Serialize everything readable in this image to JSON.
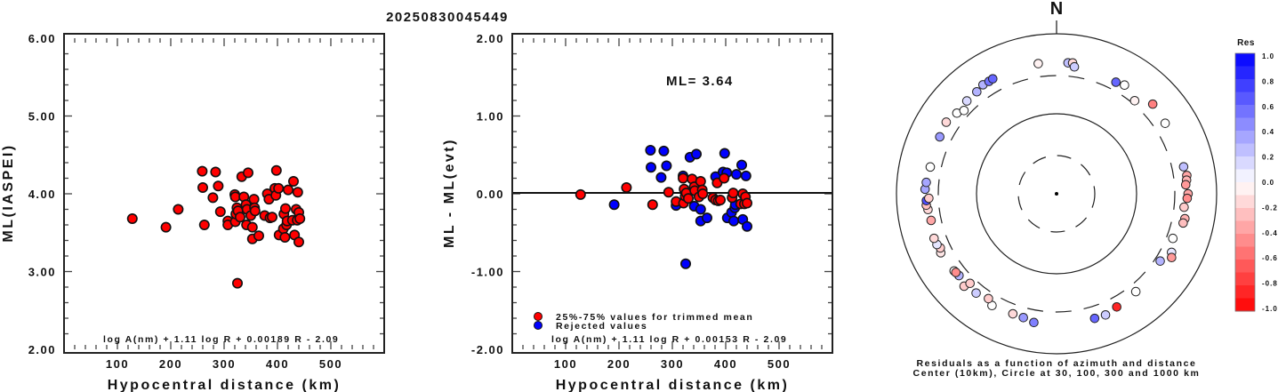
{
  "title": "20250830045449",
  "chart_data": [
    {
      "type": "scatter",
      "name": "ml-vs-distance",
      "xlabel": "Hypocentral distance (km)",
      "ylabel": "ML(IASPEI)",
      "xlim": [
        0,
        600
      ],
      "ylim": [
        2.0,
        6.0
      ],
      "xticks": [
        "100",
        "200",
        "300",
        "400",
        "500"
      ],
      "xtick_values": [
        100,
        200,
        300,
        400,
        500
      ],
      "yticks": [
        "2.00",
        "3.00",
        "4.00",
        "5.00",
        "6.00"
      ],
      "ytick_values": [
        2,
        3,
        4,
        5,
        6
      ],
      "formula": "log A(nm) + 1.11 log R + 0.00189 R - 2.09",
      "point_color": "#ff0000",
      "points": [
        [
          128,
          3.68
        ],
        [
          191,
          3.57
        ],
        [
          214,
          3.8
        ],
        [
          259,
          4.29
        ],
        [
          260,
          4.08
        ],
        [
          263,
          3.6
        ],
        [
          284,
          4.28
        ],
        [
          289,
          4.1
        ],
        [
          279,
          3.95
        ],
        [
          293,
          3.77
        ],
        [
          307,
          3.65
        ],
        [
          307,
          3.6
        ],
        [
          320,
          3.99
        ],
        [
          321,
          3.96
        ],
        [
          321,
          3.64
        ],
        [
          322,
          3.74
        ],
        [
          324,
          3.82
        ],
        [
          326,
          3.78
        ],
        [
          325,
          2.85
        ],
        [
          330,
          3.7
        ],
        [
          333,
          4.22
        ],
        [
          337,
          3.96
        ],
        [
          341,
          3.86
        ],
        [
          342,
          3.6
        ],
        [
          343,
          3.8
        ],
        [
          345,
          4.27
        ],
        [
          350,
          3.72
        ],
        [
          353,
          3.57
        ],
        [
          353,
          3.42
        ],
        [
          356,
          3.93
        ],
        [
          357,
          3.82
        ],
        [
          358,
          3.78
        ],
        [
          365,
          3.46
        ],
        [
          376,
          3.72
        ],
        [
          381,
          4.0
        ],
        [
          384,
          3.93
        ],
        [
          386,
          3.69
        ],
        [
          390,
          3.7
        ],
        [
          395,
          4.07
        ],
        [
          397,
          3.98
        ],
        [
          398,
          4.3
        ],
        [
          402,
          4.07
        ],
        [
          403,
          3.47
        ],
        [
          411,
          3.55
        ],
        [
          412,
          3.74
        ],
        [
          414,
          3.44
        ],
        [
          415,
          3.81
        ],
        [
          417,
          3.6
        ],
        [
          418,
          3.65
        ],
        [
          420,
          4.05
        ],
        [
          428,
          3.66
        ],
        [
          430,
          4.16
        ],
        [
          432,
          3.47
        ],
        [
          435,
          3.8
        ],
        [
          437,
          3.66
        ],
        [
          438,
          4.02
        ],
        [
          440,
          3.76
        ],
        [
          440,
          3.38
        ],
        [
          442,
          3.68
        ]
      ]
    },
    {
      "type": "scatter",
      "name": "residual-vs-distance",
      "xlabel": "Hypocentral distance (km)",
      "ylabel": "ML - ML(evt)",
      "xlim": [
        0,
        600
      ],
      "ylim": [
        -2.0,
        2.0
      ],
      "xticks": [
        "100",
        "200",
        "300",
        "400",
        "500"
      ],
      "xtick_values": [
        100,
        200,
        300,
        400,
        500
      ],
      "yticks": [
        "-2.00",
        "-1.00",
        "0.00",
        "1.00",
        "2.00"
      ],
      "ytick_values": [
        -2,
        -1,
        0,
        1,
        2
      ],
      "reference_line": 0.0,
      "annotation": "ML= 3.64",
      "formula": "log A(nm) + 1.11 log R + 0.00153 R - 2.09",
      "legend": [
        {
          "label": "25%-75% values for trimmed mean",
          "color": "#ff0000"
        },
        {
          "label": "Rejected values",
          "color": "#0000ff"
        }
      ],
      "legend_position": "bottom-left",
      "series": [
        {
          "name": "25%-75% values for trimmed mean",
          "color": "#ff0000",
          "points": [
            [
              128,
              -0.01
            ],
            [
              214,
              0.08
            ],
            [
              263,
              -0.14
            ],
            [
              293,
              0.02
            ],
            [
              307,
              -0.1
            ],
            [
              320,
              0.2
            ],
            [
              321,
              -0.12
            ],
            [
              322,
              0.06
            ],
            [
              324,
              -0.03
            ],
            [
              326,
              0.01
            ],
            [
              330,
              -0.06
            ],
            [
              337,
              0.19
            ],
            [
              341,
              0.09
            ],
            [
              342,
              0.04
            ],
            [
              350,
              -0.04
            ],
            [
              353,
              0.16
            ],
            [
              356,
              0.05
            ],
            [
              357,
              0.0
            ],
            [
              376,
              -0.05
            ],
            [
              381,
              -0.08
            ],
            [
              384,
              0.14
            ],
            [
              386,
              -0.09
            ],
            [
              390,
              -0.08
            ],
            [
              397,
              0.2
            ],
            [
              412,
              -0.05
            ],
            [
              414,
              0.01
            ],
            [
              428,
              -0.13
            ],
            [
              432,
              0.0
            ],
            [
              435,
              -0.13
            ],
            [
              437,
              -0.04
            ],
            [
              440,
              -0.12
            ]
          ]
        },
        {
          "name": "Rejected values",
          "color": "#0000ff",
          "points": [
            [
              191,
              -0.14
            ],
            [
              259,
              0.56
            ],
            [
              260,
              0.34
            ],
            [
              279,
              0.21
            ],
            [
              284,
              0.55
            ],
            [
              289,
              0.36
            ],
            [
              307,
              -0.15
            ],
            [
              320,
              0.23
            ],
            [
              325,
              -0.9
            ],
            [
              333,
              0.47
            ],
            [
              341,
              -0.16
            ],
            [
              345,
              0.51
            ],
            [
              353,
              -0.2
            ],
            [
              353,
              -0.35
            ],
            [
              365,
              -0.31
            ],
            [
              381,
              0.22
            ],
            [
              395,
              0.28
            ],
            [
              398,
              0.52
            ],
            [
              402,
              0.27
            ],
            [
              403,
              -0.31
            ],
            [
              411,
              -0.24
            ],
            [
              415,
              -0.35
            ],
            [
              417,
              -0.18
            ],
            [
              418,
              -0.14
            ],
            [
              420,
              0.25
            ],
            [
              430,
              0.37
            ],
            [
              432,
              -0.33
            ],
            [
              438,
              0.23
            ],
            [
              440,
              -0.42
            ]
          ]
        }
      ]
    },
    {
      "type": "scatter",
      "name": "residual-azimuth-polar",
      "north_label": "N",
      "caption_line1": "Residuals as a function of azimuth and distance",
      "caption_line2": "Center (10km), Circle at 30, 100, 300 and 1000 km",
      "rings_km": [
        30,
        100,
        300,
        1000
      ],
      "center_km": 10,
      "colorbar": {
        "title": "Res",
        "range": [
          -1.0,
          1.0
        ],
        "labels": [
          "1.0",
          "0.8",
          "0.6",
          "0.4",
          "0.2",
          "0.0",
          "-0.2",
          "-0.4",
          "-0.6",
          "-0.8",
          "-1.0"
        ],
        "max_color": "#0000ff",
        "zero_color": "#ffffff",
        "min_color": "#ff0000"
      },
      "points_az_dist_res": [
        [
          352,
          440,
          -0.05
        ],
        [
          5,
          440,
          0.25
        ],
        [
          7,
          445,
          -0.15
        ],
        [
          8,
          400,
          0.2
        ],
        [
          28,
          380,
          0.6
        ],
        [
          32,
          400,
          0.0
        ],
        [
          40,
          330,
          -0.05
        ],
        [
          47,
          440,
          -0.5
        ],
        [
          57,
          415,
          0.0
        ],
        [
          78,
          420,
          0.25
        ],
        [
          82,
          440,
          -0.35
        ],
        [
          84,
          430,
          -0.3
        ],
        [
          86,
          415,
          -0.4
        ],
        [
          90,
          440,
          -0.35
        ],
        [
          92,
          430,
          -0.45
        ],
        [
          96,
          400,
          -0.2
        ],
        [
          101,
          430,
          -0.3
        ],
        [
          103,
          420,
          -0.25
        ],
        [
          111,
          360,
          0.0
        ],
        [
          117,
          410,
          0.1
        ],
        [
          119,
          440,
          -0.4
        ],
        [
          123,
          350,
          0.3
        ],
        [
          141,
          375,
          0.0
        ],
        [
          152,
          400,
          -0.85
        ],
        [
          158,
          430,
          0.2
        ],
        [
          163,
          425,
          0.6
        ],
        [
          190,
          430,
          0.5
        ],
        [
          195,
          400,
          0.4
        ],
        [
          200,
          395,
          -0.15
        ],
        [
          210,
          410,
          0.0
        ],
        [
          213,
          365,
          -0.2
        ],
        [
          219,
          395,
          0.2
        ],
        [
          225,
          430,
          -0.2
        ],
        [
          224,
          360,
          -0.2
        ],
        [
          230,
          390,
          0.3
        ],
        [
          233,
          400,
          0.0
        ],
        [
          232,
          395,
          -0.45
        ],
        [
          243,
          420,
          -0.1
        ],
        [
          245,
          400,
          -0.2
        ],
        [
          247,
          420,
          0.1
        ],
        [
          250,
          425,
          -0.15
        ],
        [
          258,
          400,
          -0.35
        ],
        [
          263,
          415,
          -0.15
        ],
        [
          265,
          430,
          -0.25
        ],
        [
          267,
          425,
          0.7
        ],
        [
          268,
          395,
          -0.2
        ],
        [
          272,
          440,
          0.35
        ],
        [
          275,
          430,
          0.35
        ],
        [
          282,
          410,
          0.0
        ],
        [
          296,
          420,
          0.4
        ],
        [
          303,
          440,
          -0.15
        ],
        [
          309,
          400,
          0.0
        ],
        [
          312,
          360,
          0.0
        ],
        [
          316,
          410,
          0.15
        ],
        [
          322,
          415,
          0.3
        ],
        [
          326,
          440,
          0.3
        ],
        [
          329,
          435,
          0.55
        ],
        [
          331,
          440,
          0.6
        ]
      ]
    }
  ]
}
